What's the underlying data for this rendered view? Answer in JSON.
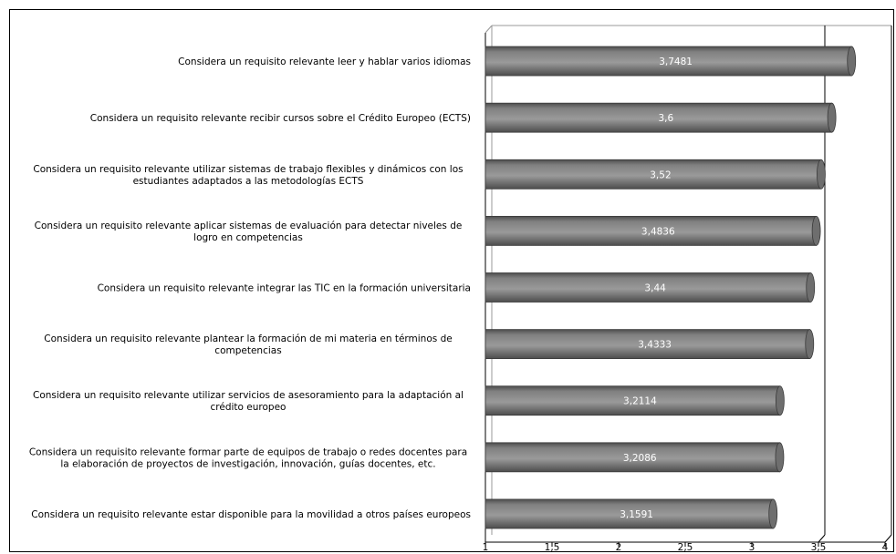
{
  "chart_data": {
    "type": "bar",
    "orientation": "horizontal",
    "categories": [
      "Considera un requisito relevante leer y hablar varios idiomas",
      "Considera un requisito relevante recibir cursos sobre el Crédito Europeo (ECTS)",
      "Considera un requisito relevante utilizar sistemas de trabajo flexibles y dinámicos con los estudiantes adaptados a las metodologías ECTS",
      "Considera un requisito relevante aplicar sistemas de evaluación para detectar niveles de logro en competencias",
      "Considera un requisito relevante integrar las TIC en la formación universitaria",
      "Considera un requisito relevante plantear la formación de mi materia en términos de competencias",
      "Considera un requisito relevante  utilizar servicios de asesoramiento para la adaptación al crédito europeo",
      "Considera un requisito relevante formar parte de equipos de trabajo o redes docentes para la elaboración de proyectos de investigación, innovación, guías docentes, etc.",
      "Considera un requisito relevante estar disponible para la movilidad a otros países europeos"
    ],
    "category_lines": [
      [
        "Considera un requisito relevante leer y hablar varios idiomas"
      ],
      [
        "Considera un requisito relevante recibir cursos sobre el Crédito Europeo (ECTS)"
      ],
      [
        "Considera un requisito relevante utilizar sistemas de trabajo flexibles y dinámicos con los",
        "estudiantes adaptados a las metodologías ECTS"
      ],
      [
        "Considera un requisito relevante aplicar sistemas de evaluación para detectar niveles de",
        "logro en competencias"
      ],
      [
        "Considera un requisito relevante integrar las TIC en la formación universitaria"
      ],
      [
        "Considera un requisito relevante plantear la formación de mi materia en términos de",
        "competencias"
      ],
      [
        "Considera un requisito relevante  utilizar servicios de asesoramiento para la adaptación al",
        "crédito europeo"
      ],
      [
        "Considera un requisito relevante formar parte de equipos de trabajo o redes docentes para",
        "la elaboración de proyectos de investigación, innovación, guías docentes, etc."
      ],
      [
        "Considera un requisito relevante estar disponible para la movilidad a otros países europeos"
      ]
    ],
    "values": [
      3.7481,
      3.6,
      3.52,
      3.4836,
      3.44,
      3.4333,
      3.2114,
      3.2086,
      3.1591
    ],
    "value_labels": [
      "3,7481",
      "3,6",
      "3,52",
      "3,4836",
      "3,44",
      "3,4333",
      "3,2114",
      "3,2086",
      "3,1591"
    ],
    "xlim": [
      1,
      4
    ],
    "xticks": [
      1,
      1.5,
      2,
      2.5,
      3,
      3.5,
      4
    ],
    "xtick_labels": [
      "1",
      "1,5",
      "2",
      "2,5",
      "3",
      "3,5",
      "4"
    ],
    "gridlines": [
      3.5,
      4
    ],
    "bar_style": "3d-cylinder",
    "bar_color": "#808080",
    "bar_dark": "#4d4d4d",
    "bar_light": "#9a9a9a",
    "title": "",
    "xlabel": "",
    "ylabel": "",
    "legend": "none"
  }
}
